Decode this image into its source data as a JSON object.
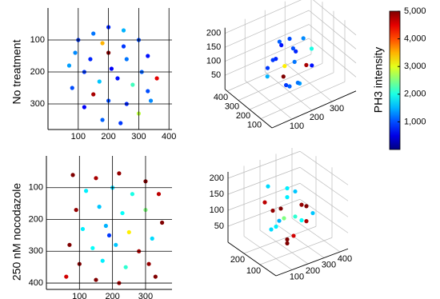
{
  "row_labels": [
    "No treatment",
    "250 nM nocodazole"
  ],
  "chart_data": [
    {
      "type": "scatter",
      "xlim": [
        0,
        410
      ],
      "ylim": [
        0,
        380
      ],
      "y_inverted": true,
      "grid": true,
      "xticks": [
        100,
        200,
        300,
        400
      ],
      "yticks": [
        100,
        200,
        300
      ],
      "x": [
        100,
        150,
        200,
        250,
        300,
        330,
        360,
        340,
        300,
        240,
        180,
        120,
        80,
        70,
        140,
        200,
        260,
        230,
        170,
        120,
        280,
        200,
        150,
        260,
        310,
        210,
        90,
        250,
        180,
        330
      ],
      "y": [
        100,
        80,
        60,
        70,
        100,
        150,
        220,
        290,
        330,
        360,
        350,
        310,
        250,
        180,
        160,
        140,
        160,
        220,
        230,
        200,
        240,
        290,
        270,
        300,
        200,
        190,
        140,
        120,
        110,
        260
      ],
      "c": [
        900,
        1200,
        800,
        1500,
        1000,
        700,
        4500,
        1300,
        2800,
        900,
        1100,
        600,
        1000,
        1400,
        800,
        5000,
        1200,
        700,
        1600,
        900,
        2200,
        1000,
        4800,
        800,
        1100,
        600,
        1300,
        900,
        3500,
        1000
      ]
    },
    {
      "type": "scatter3d",
      "xlim": [
        0,
        420
      ],
      "ylim": [
        0,
        420
      ],
      "zlim": [
        0,
        220
      ],
      "xticks": [
        100,
        200,
        300
      ],
      "yticks": [
        100,
        200,
        300,
        400
      ],
      "zticks": [
        50,
        100,
        150,
        200
      ],
      "x": [
        200,
        120,
        280,
        150,
        250,
        200,
        100,
        300,
        180,
        220,
        160,
        240,
        130,
        270,
        200,
        200,
        310,
        90,
        230,
        170
      ],
      "y": [
        200,
        180,
        220,
        260,
        140,
        200,
        220,
        180,
        120,
        280,
        160,
        240,
        130,
        270,
        110,
        290,
        200,
        200,
        180,
        220
      ],
      "z": [
        190,
        150,
        160,
        110,
        100,
        20,
        80,
        70,
        140,
        60,
        50,
        130,
        100,
        100,
        60,
        150,
        120,
        120,
        30,
        170
      ],
      "c": [
        1000,
        800,
        1300,
        900,
        4800,
        1100,
        1500,
        700,
        1200,
        3200,
        900,
        1000,
        5000,
        800,
        1400,
        1100,
        2000,
        900,
        1200,
        700
      ]
    },
    {
      "type": "scatter",
      "xlim": [
        0,
        380
      ],
      "ylim": [
        0,
        420
      ],
      "y_inverted": true,
      "grid": true,
      "xticks": [
        100,
        200,
        300
      ],
      "yticks": [
        100,
        200,
        300,
        400
      ],
      "x": [
        80,
        150,
        220,
        300,
        340,
        120,
        200,
        260,
        90,
        160,
        230,
        300,
        350,
        110,
        180,
        250,
        320,
        70,
        140,
        210,
        280,
        100,
        170,
        240,
        310,
        60,
        150,
        220,
        330,
        190
      ],
      "y": [
        60,
        70,
        55,
        80,
        120,
        110,
        100,
        120,
        170,
        160,
        180,
        170,
        210,
        230,
        220,
        240,
        260,
        280,
        290,
        280,
        300,
        340,
        330,
        350,
        340,
        380,
        390,
        400,
        380,
        250
      ],
      "c": [
        5000,
        4800,
        4900,
        5000,
        4700,
        1800,
        1700,
        2000,
        4900,
        1600,
        1900,
        2500,
        5000,
        1800,
        1500,
        3200,
        1700,
        5000,
        1900,
        1600,
        4800,
        5000,
        1800,
        2100,
        4900,
        4600,
        5000,
        4800,
        5000,
        900
      ]
    },
    {
      "type": "scatter3d",
      "xlim": [
        0,
        450
      ],
      "ylim": [
        0,
        300
      ],
      "zlim": [
        0,
        220
      ],
      "xticks": [
        100,
        200,
        300,
        400
      ],
      "yticks": [
        100,
        200
      ],
      "zticks": [
        50,
        100,
        150,
        200
      ],
      "x": [
        220,
        150,
        290,
        180,
        260,
        220,
        120,
        330,
        200,
        240,
        160,
        280,
        140,
        310,
        200,
        250,
        190,
        350,
        100,
        230
      ],
      "y": [
        150,
        120,
        170,
        200,
        100,
        150,
        150,
        140,
        80,
        220,
        90,
        210,
        210,
        80,
        150,
        60,
        240,
        190,
        100,
        120
      ],
      "z": [
        180,
        140,
        150,
        100,
        90,
        20,
        70,
        60,
        120,
        50,
        40,
        120,
        130,
        110,
        90,
        150,
        160,
        90,
        100,
        40
      ],
      "c": [
        1800,
        5000,
        1600,
        4900,
        1900,
        5000,
        1700,
        4800,
        2100,
        1500,
        5000,
        1800,
        4700,
        1600,
        2500,
        5000,
        1700,
        4900,
        1800,
        4600
      ]
    },
    {
      "type": "colorbar",
      "label": "PH3 intensity",
      "colormap": "jet",
      "clim": [
        0,
        5000
      ],
      "ticks": [
        {
          "value": 1000,
          "label": "1,000"
        },
        {
          "value": 2000,
          "label": "2,000"
        },
        {
          "value": 3000,
          "label": "3,000"
        },
        {
          "value": 4000,
          "label": "4,000"
        },
        {
          "value": 5000,
          "label": "5,000"
        }
      ]
    }
  ]
}
